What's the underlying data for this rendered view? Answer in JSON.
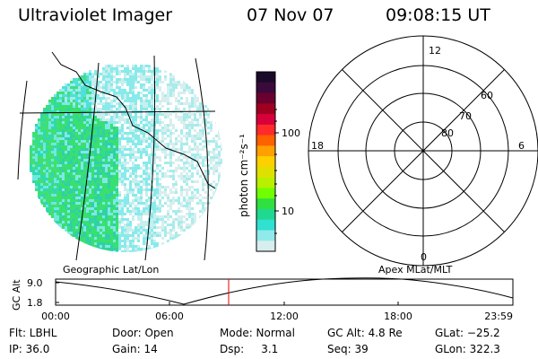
{
  "header": {
    "title": "Ultraviolet Imager",
    "date": "07 Nov 07",
    "time": "09:08:15 UT"
  },
  "colorbar": {
    "unit_label": "photon cm⁻²s⁻¹",
    "ticks": [
      "100",
      "10"
    ],
    "colors": [
      "#1a0a2a",
      "#3a0a3a",
      "#6a0030",
      "#a00020",
      "#d8003a",
      "#ff2a2a",
      "#ff6000",
      "#ffa000",
      "#ffd000",
      "#e0e000",
      "#b8f000",
      "#70ff00",
      "#30e040",
      "#20d890",
      "#30e0d0",
      "#90eaea",
      "#d8eeee"
    ]
  },
  "left_panel": {
    "caption": "Geographic Lat/Lon"
  },
  "polar_panel": {
    "caption": "Apex MLat/MLT",
    "mlt_labels": {
      "top": "12",
      "left": "18",
      "right": "6",
      "bottom": "0"
    },
    "lat_labels": [
      "60",
      "70",
      "80"
    ]
  },
  "timeline": {
    "ylabel": "GC Alt",
    "y_ticks": [
      "9.0",
      "1.8"
    ],
    "x_ticks": [
      "00:00",
      "06:00",
      "12:00",
      "18:00",
      "23:59"
    ],
    "current_time": "09:08:15"
  },
  "info": {
    "flt": "Flt: LBHL",
    "ip": "IP: 36.0",
    "door": "Door: Open",
    "gain": "Gain: 14",
    "mode": "Mode: Normal",
    "dsp": "Dsp:     3.1",
    "gcalt": "GC Alt: 4.8 Re",
    "seq": "Seq: 39",
    "glat": "GLat: −25.2",
    "glon": "GLon: 322.3"
  }
}
